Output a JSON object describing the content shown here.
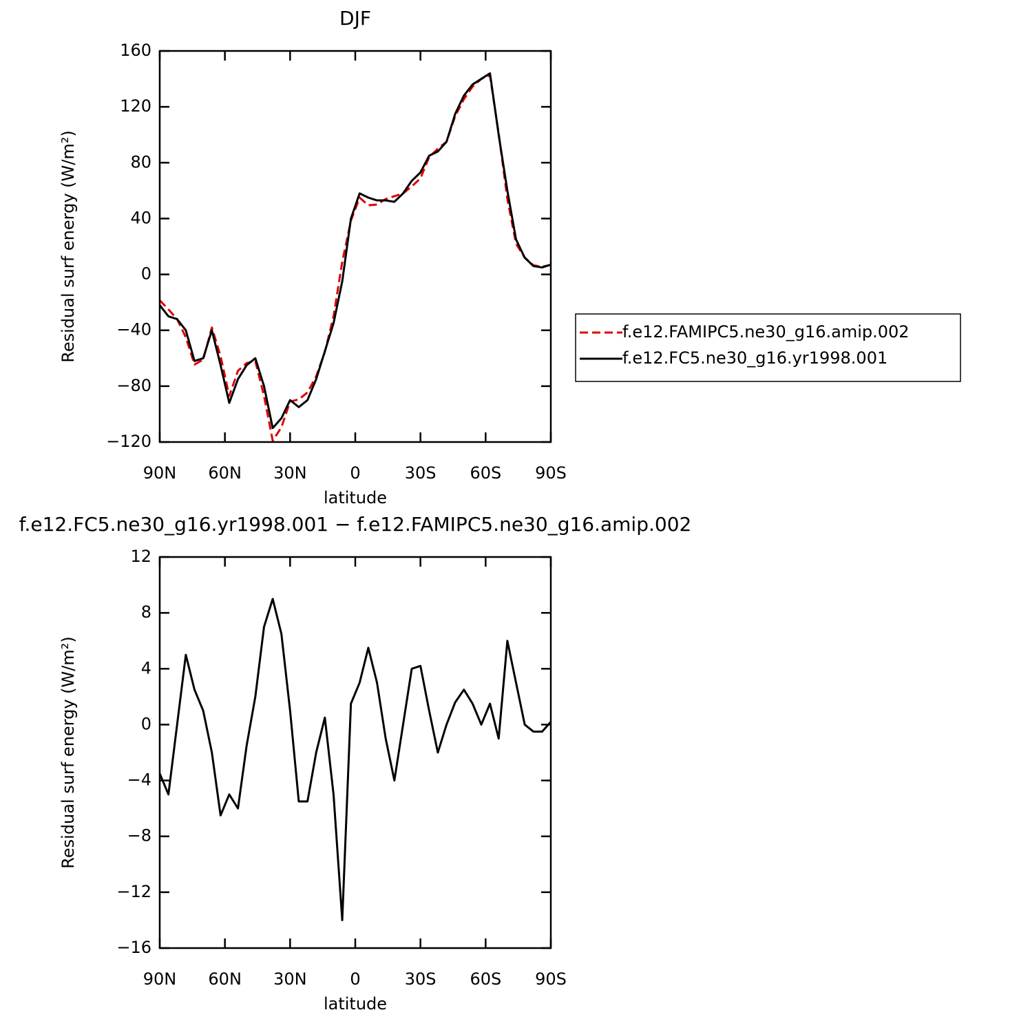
{
  "chart_data": [
    {
      "type": "line",
      "title": "DJF",
      "xlabel": "latitude",
      "ylabel": "Residual surf energy (W/m²)",
      "x": [
        90,
        86,
        82,
        78,
        74,
        70,
        66,
        62,
        58,
        54,
        50,
        46,
        42,
        38,
        34,
        30,
        26,
        22,
        18,
        14,
        10,
        6,
        2,
        -2,
        -6,
        -10,
        -14,
        -18,
        -22,
        -26,
        -30,
        -34,
        -38,
        -42,
        -46,
        -50,
        -54,
        -58,
        -62,
        -66,
        -70,
        -74,
        -78,
        -82,
        -86,
        -90
      ],
      "series": [
        {
          "name": "f.e12.FAMIPC5.ne30_g16.amip.002",
          "color": "#e00000",
          "style": "dashed",
          "values": [
            -18.5,
            -25,
            -32,
            -45,
            -64.5,
            -61,
            -38,
            -58.5,
            -87,
            -69,
            -63.5,
            -62,
            -87,
            -119,
            -109.5,
            -91,
            -89.5,
            -84.5,
            -73,
            -55.5,
            -30,
            9,
            38.5,
            55,
            49.5,
            50,
            54,
            56,
            58,
            63,
            68.8,
            84,
            90,
            95,
            113.4,
            125.5,
            134.5,
            140,
            142.5,
            101,
            54,
            22,
            12,
            6.5,
            5.5,
            6.8
          ]
        },
        {
          "name": "f.e12.FC5.ne30_g16.yr1998.001",
          "color": "#000000",
          "style": "solid",
          "values": [
            -22,
            -30,
            -32,
            -40,
            -62,
            -60,
            -40,
            -65,
            -92,
            -75,
            -65,
            -60,
            -80,
            -110,
            -103,
            -90,
            -95,
            -90,
            -75,
            -55,
            -35,
            -5,
            40,
            58,
            55,
            53,
            53,
            52,
            58,
            67,
            73,
            85,
            88,
            95,
            115,
            128,
            136,
            140,
            144,
            100,
            60,
            25,
            12,
            6,
            5,
            7
          ]
        }
      ],
      "xlim": [
        90,
        -90
      ],
      "xticks": [
        {
          "value": 90,
          "label": "90N"
        },
        {
          "value": 60,
          "label": "60N"
        },
        {
          "value": 30,
          "label": "30N"
        },
        0,
        {
          "value": -30,
          "label": "30S"
        },
        {
          "value": -60,
          "label": "60S"
        },
        {
          "value": -90,
          "label": "90S"
        }
      ],
      "ylim": [
        -120,
        160
      ],
      "yticks": [
        {
          "value": -120,
          "label": "−120"
        },
        {
          "value": -80,
          "label": "−80"
        },
        {
          "value": -40,
          "label": "−40"
        },
        0,
        40,
        80,
        120,
        160
      ],
      "legend": "right"
    },
    {
      "type": "line",
      "title": "f.e12.FC5.ne30_g16.yr1998.001 − f.e12.FAMIPC5.ne30_g16.amip.002",
      "xlabel": "latitude",
      "ylabel": "Residual surf energy (W/m²)",
      "x": [
        90,
        86,
        82,
        78,
        74,
        70,
        66,
        62,
        58,
        54,
        50,
        46,
        42,
        38,
        34,
        30,
        26,
        22,
        18,
        14,
        10,
        6,
        2,
        -2,
        -6,
        -10,
        -14,
        -18,
        -22,
        -26,
        -30,
        -34,
        -38,
        -42,
        -46,
        -50,
        -54,
        -58,
        -62,
        -66,
        -70,
        -74,
        -78,
        -82,
        -86,
        -90
      ],
      "series": [
        {
          "color": "#000000",
          "style": "solid",
          "values": [
            -3.5,
            -5,
            0,
            5,
            2.5,
            1,
            -2,
            -6.5,
            -5,
            -6,
            -1.5,
            2,
            7,
            9,
            6.5,
            1,
            -5.5,
            -5.5,
            -2,
            0.5,
            -5,
            -14,
            1.5,
            3,
            5.5,
            3,
            -1,
            -4,
            0,
            4,
            4.2,
            1,
            -2,
            0,
            1.6,
            2.5,
            1.5,
            0,
            1.5,
            -1,
            6,
            3,
            0,
            -0.5,
            -0.5,
            0.2
          ]
        }
      ],
      "xlim": [
        90,
        -90
      ],
      "xticks": [
        {
          "value": 90,
          "label": "90N"
        },
        {
          "value": 60,
          "label": "60N"
        },
        {
          "value": 30,
          "label": "30N"
        },
        0,
        {
          "value": -30,
          "label": "30S"
        },
        {
          "value": -60,
          "label": "60S"
        },
        {
          "value": -90,
          "label": "90S"
        }
      ],
      "ylim": [
        -16,
        12
      ],
      "yticks": [
        {
          "value": -16,
          "label": "−16"
        },
        {
          "value": -12,
          "label": "−12"
        },
        {
          "value": -8,
          "label": "−8"
        },
        {
          "value": -4,
          "label": "−4"
        },
        0,
        4,
        8,
        12
      ]
    }
  ]
}
